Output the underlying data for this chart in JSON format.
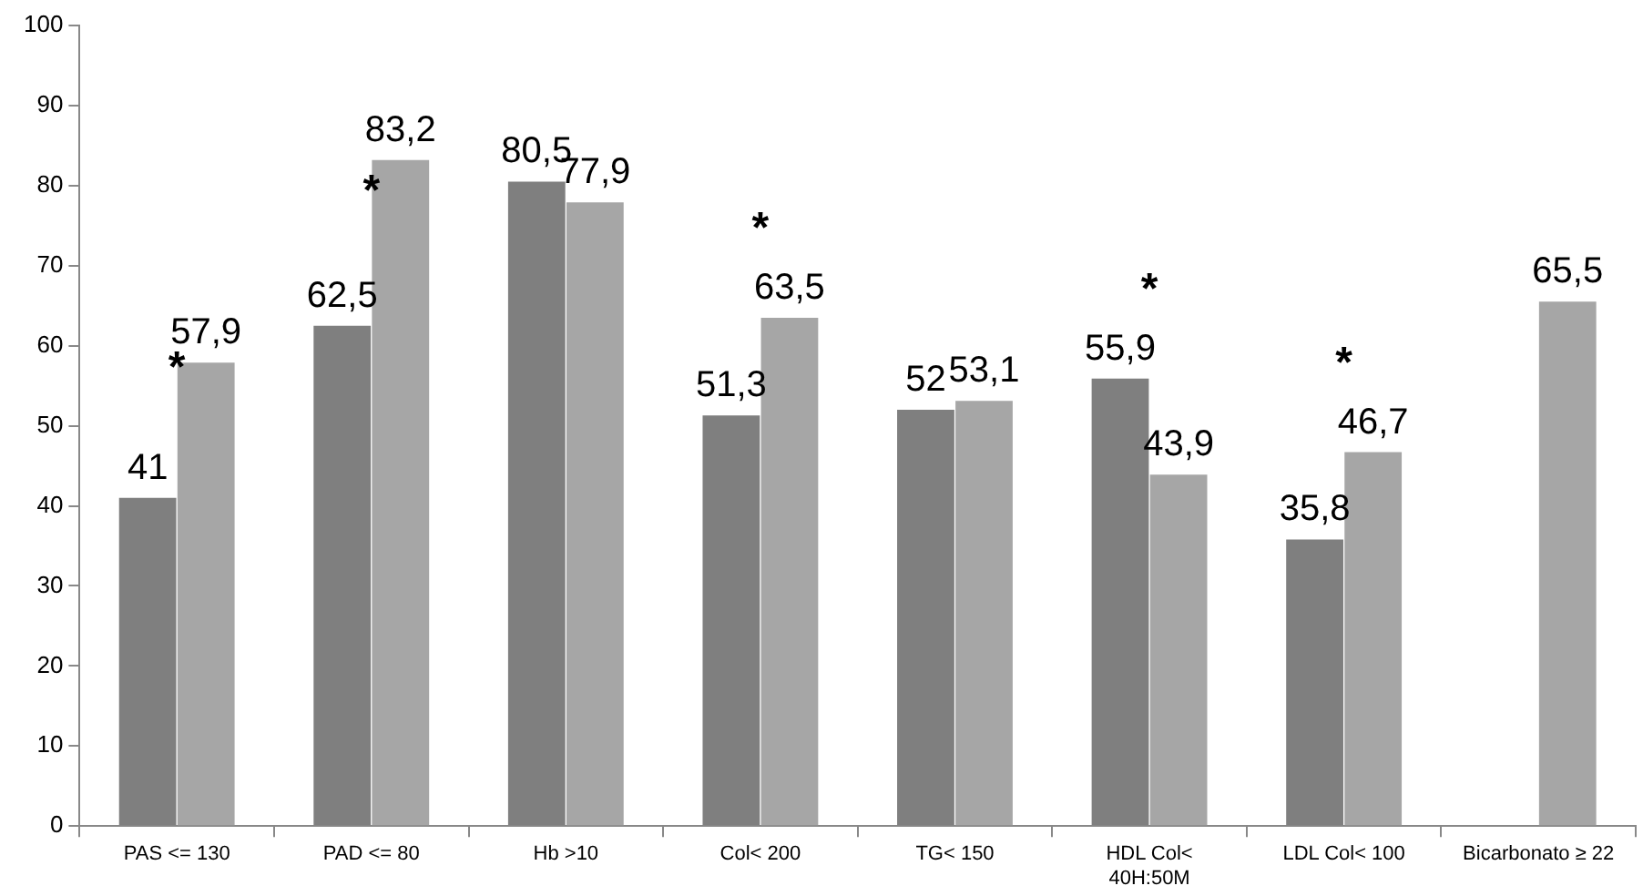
{
  "chart_data": {
    "type": "bar",
    "categories": [
      "PAS <= 130",
      "PAD <= 80",
      "Hb >10",
      "Col< 200",
      "TG< 150",
      "HDL Col<\n40H:50M",
      "LDL Col< 100",
      "Bicarbonato ≥ 22"
    ],
    "series": [
      {
        "color": "#7f7f7f",
        "values": [
          41,
          62.5,
          80.5,
          51.3,
          52,
          55.9,
          35.8,
          null
        ],
        "value_labels": [
          "41",
          "62,5",
          "80,5",
          "51,3",
          "52",
          "55,9",
          "35,8",
          null
        ]
      },
      {
        "color": "#a6a6a6",
        "values": [
          57.9,
          83.2,
          77.9,
          63.5,
          53.1,
          43.9,
          46.7,
          65.5
        ],
        "value_labels": [
          "57,9",
          "83,2",
          "77,9",
          "63,5",
          "53,1",
          "43,9",
          "46,7",
          "65,5"
        ]
      }
    ],
    "ylim": [
      0,
      100
    ],
    "yticks": [
      0,
      10,
      20,
      30,
      40,
      50,
      60,
      70,
      80,
      90,
      100
    ],
    "grid": false,
    "legend": false,
    "annotations": [
      {
        "text": "*",
        "x": "PAS <= 130",
        "y": 58
      },
      {
        "text": "*",
        "x": "PAD <= 80",
        "y": 80
      },
      {
        "text": "*",
        "x": "Col< 200",
        "y": 63.5
      },
      {
        "text": "*",
        "x": "HDL Col<\n40H:50M",
        "y": 55.9
      },
      {
        "text": "*",
        "x": "LDL Col< 100",
        "y": 46.7
      }
    ]
  }
}
